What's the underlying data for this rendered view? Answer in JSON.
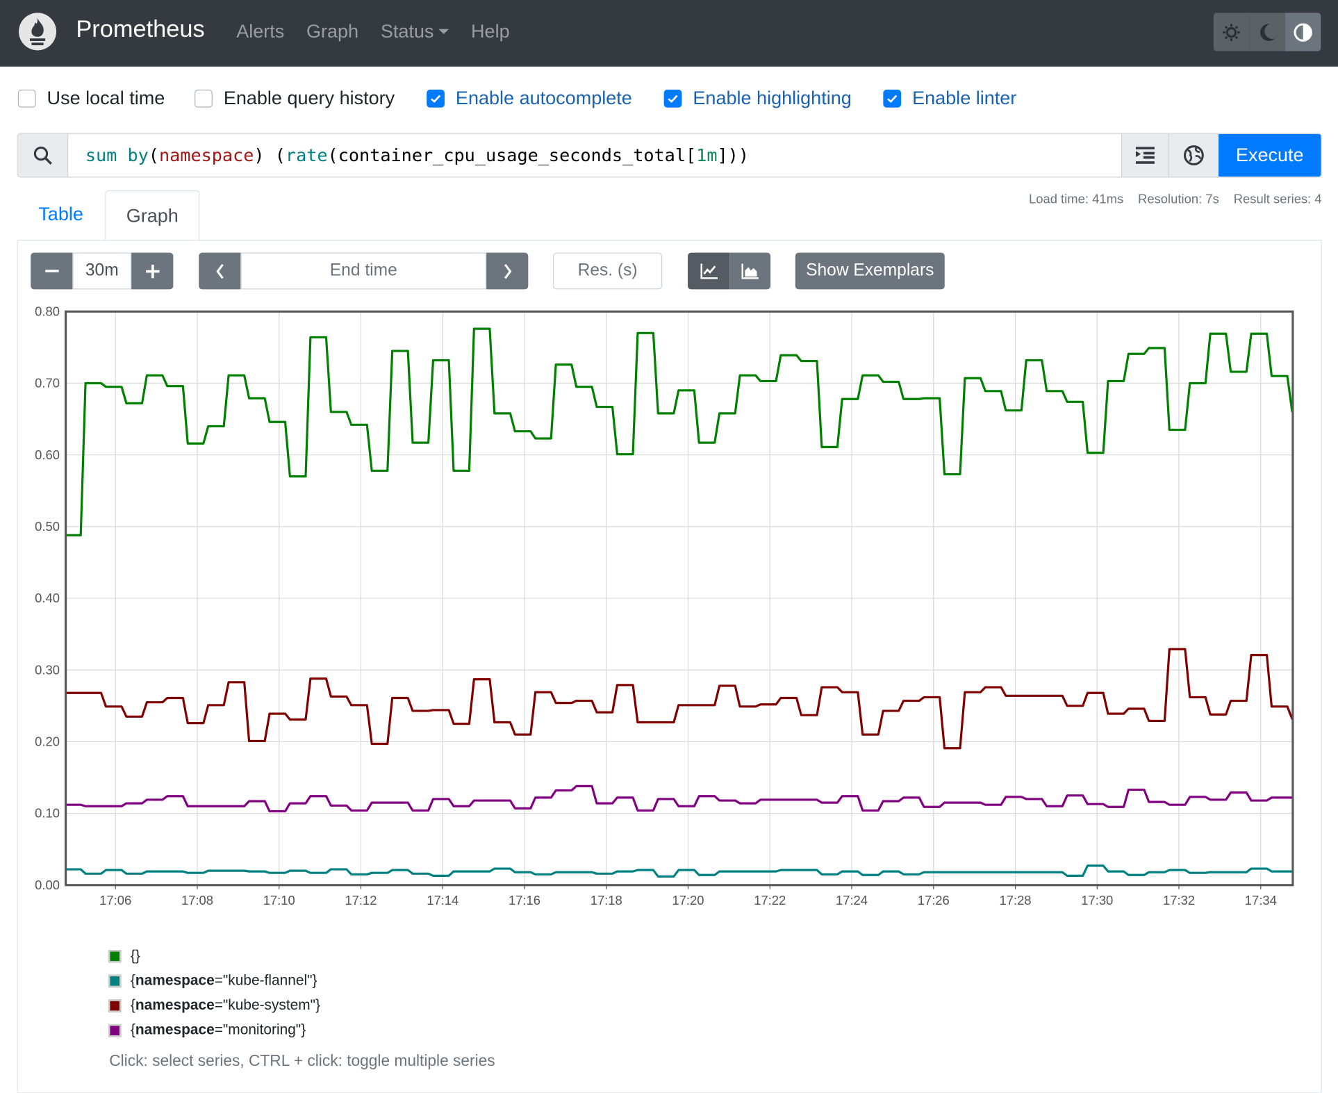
{
  "navbar": {
    "brand": "Prometheus",
    "links": [
      "Alerts",
      "Graph",
      "Status",
      "Help"
    ],
    "theme_buttons": [
      "sun-icon",
      "moon-icon",
      "contrast-icon"
    ]
  },
  "options": [
    {
      "label": "Use local time",
      "checked": false
    },
    {
      "label": "Enable query history",
      "checked": false
    },
    {
      "label": "Enable autocomplete",
      "checked": true
    },
    {
      "label": "Enable highlighting",
      "checked": true
    },
    {
      "label": "Enable linter",
      "checked": true
    }
  ],
  "query": {
    "tokens": [
      {
        "text": "sum",
        "color": "#008080"
      },
      {
        "text": " ",
        "color": "#000000"
      },
      {
        "text": "by",
        "color": "#008080"
      },
      {
        "text": "(",
        "color": "#000000"
      },
      {
        "text": "namespace",
        "color": "#a31515"
      },
      {
        "text": ") (",
        "color": "#000000"
      },
      {
        "text": "rate",
        "color": "#008080"
      },
      {
        "text": "(container_cpu_usage_seconds_total[",
        "color": "#000000"
      },
      {
        "text": "1m",
        "color": "#09885a"
      },
      {
        "text": "]))",
        "color": "#000000"
      }
    ],
    "execute_label": "Execute"
  },
  "tabs": {
    "table": "Table",
    "graph": "Graph",
    "active": "Graph"
  },
  "stats": {
    "load_time": "Load time: 41ms",
    "resolution": "Resolution: 7s",
    "result_series": "Result series: 4"
  },
  "controls": {
    "range": "30m",
    "end_time_placeholder": "End time",
    "resolution_placeholder": "Res. (s)",
    "chart_mode": "line",
    "show_exemplars": "Show Exemplars"
  },
  "legend": {
    "items": [
      {
        "prefix": "{",
        "key": "",
        "eq": "",
        "value": "}",
        "color": "#008000"
      },
      {
        "prefix": "{",
        "key": "namespace",
        "eq": "=",
        "value": "\"kube-flannel\"}",
        "color": "#008080"
      },
      {
        "prefix": "{",
        "key": "namespace",
        "eq": "=",
        "value": "\"kube-system\"}",
        "color": "#800000"
      },
      {
        "prefix": "{",
        "key": "namespace",
        "eq": "=",
        "value": "\"monitoring\"}",
        "color": "#800080"
      }
    ],
    "hint": "Click: select series, CTRL + click: toggle multiple series"
  },
  "chart_data": {
    "type": "line",
    "xlim": [
      "17:04:47",
      "17:34:47"
    ],
    "ylim": [
      0,
      0.8
    ],
    "grid": true,
    "yticks": [
      "0.00",
      "0.10",
      "0.20",
      "0.30",
      "0.40",
      "0.50",
      "0.60",
      "0.70",
      "0.80"
    ],
    "xticks": [
      "17:06",
      "17:08",
      "17:10",
      "17:12",
      "17:14",
      "17:16",
      "17:18",
      "17:20",
      "17:22",
      "17:24",
      "17:26",
      "17:28",
      "17:30",
      "17:32",
      "17:34"
    ],
    "x": [
      "17:04:39",
      "17:05:09",
      "17:05:39",
      "17:06:09",
      "17:06:39",
      "17:07:09",
      "17:07:39",
      "17:08:09",
      "17:08:39",
      "17:09:09",
      "17:09:39",
      "17:10:09",
      "17:10:39",
      "17:11:09",
      "17:11:39",
      "17:12:09",
      "17:12:39",
      "17:13:09",
      "17:13:39",
      "17:14:09",
      "17:14:39",
      "17:15:09",
      "17:15:39",
      "17:16:09",
      "17:16:39",
      "17:17:09",
      "17:17:39",
      "17:18:09",
      "17:18:39",
      "17:19:09",
      "17:19:39",
      "17:20:09",
      "17:20:39",
      "17:21:09",
      "17:21:39",
      "17:22:09",
      "17:22:39",
      "17:23:09",
      "17:23:39",
      "17:24:09",
      "17:24:39",
      "17:25:09",
      "17:25:39",
      "17:26:09",
      "17:26:39",
      "17:27:09",
      "17:27:39",
      "17:28:09",
      "17:28:39",
      "17:29:09",
      "17:29:39",
      "17:30:09",
      "17:30:39",
      "17:31:09",
      "17:31:39",
      "17:32:09",
      "17:32:39",
      "17:33:09",
      "17:33:39",
      "17:34:09",
      "17:34:39"
    ],
    "series": [
      {
        "name": "{}",
        "color": "#008000",
        "values": [
          0.488,
          0.7,
          0.695,
          0.672,
          0.711,
          0.696,
          0.616,
          0.64,
          0.711,
          0.679,
          0.646,
          0.57,
          0.764,
          0.66,
          0.642,
          0.578,
          0.745,
          0.617,
          0.732,
          0.578,
          0.776,
          0.658,
          0.633,
          0.623,
          0.726,
          0.695,
          0.667,
          0.601,
          0.77,
          0.658,
          0.69,
          0.617,
          0.658,
          0.711,
          0.703,
          0.739,
          0.731,
          0.611,
          0.678,
          0.711,
          0.702,
          0.678,
          0.679,
          0.573,
          0.707,
          0.689,
          0.662,
          0.732,
          0.689,
          0.674,
          0.603,
          0.703,
          0.741,
          0.749,
          0.635,
          0.7,
          0.769,
          0.716,
          0.769,
          0.71,
          0.661
        ]
      },
      {
        "name": "{namespace=\"kube-flannel\"}",
        "color": "#008080",
        "values": [
          0.022,
          0.016,
          0.021,
          0.016,
          0.019,
          0.019,
          0.017,
          0.02,
          0.02,
          0.019,
          0.017,
          0.02,
          0.017,
          0.022,
          0.015,
          0.017,
          0.021,
          0.016,
          0.013,
          0.019,
          0.019,
          0.023,
          0.018,
          0.015,
          0.018,
          0.018,
          0.016,
          0.019,
          0.021,
          0.012,
          0.021,
          0.014,
          0.019,
          0.019,
          0.019,
          0.021,
          0.021,
          0.015,
          0.019,
          0.014,
          0.019,
          0.015,
          0.018,
          0.018,
          0.018,
          0.018,
          0.018,
          0.018,
          0.018,
          0.013,
          0.027,
          0.019,
          0.014,
          0.018,
          0.021,
          0.017,
          0.018,
          0.018,
          0.023,
          0.019,
          0.019
        ]
      },
      {
        "name": "{namespace=\"kube-system\"}",
        "color": "#800000",
        "values": [
          0.268,
          0.268,
          0.249,
          0.235,
          0.255,
          0.261,
          0.226,
          0.251,
          0.283,
          0.201,
          0.239,
          0.231,
          0.288,
          0.263,
          0.251,
          0.197,
          0.261,
          0.243,
          0.244,
          0.225,
          0.287,
          0.227,
          0.21,
          0.269,
          0.254,
          0.257,
          0.241,
          0.279,
          0.227,
          0.227,
          0.251,
          0.251,
          0.278,
          0.249,
          0.252,
          0.261,
          0.237,
          0.276,
          0.269,
          0.21,
          0.243,
          0.257,
          0.262,
          0.191,
          0.269,
          0.276,
          0.264,
          0.264,
          0.264,
          0.25,
          0.268,
          0.239,
          0.246,
          0.229,
          0.329,
          0.262,
          0.238,
          0.257,
          0.321,
          0.249,
          0.232
        ]
      },
      {
        "name": "{namespace=\"monitoring\"}",
        "color": "#800080",
        "values": [
          0.112,
          0.11,
          0.11,
          0.114,
          0.119,
          0.124,
          0.11,
          0.11,
          0.11,
          0.117,
          0.103,
          0.114,
          0.124,
          0.111,
          0.104,
          0.115,
          0.115,
          0.104,
          0.12,
          0.11,
          0.118,
          0.118,
          0.107,
          0.122,
          0.132,
          0.138,
          0.114,
          0.122,
          0.104,
          0.12,
          0.11,
          0.124,
          0.118,
          0.114,
          0.119,
          0.119,
          0.119,
          0.115,
          0.124,
          0.104,
          0.117,
          0.122,
          0.109,
          0.115,
          0.115,
          0.112,
          0.123,
          0.12,
          0.11,
          0.125,
          0.113,
          0.109,
          0.133,
          0.116,
          0.112,
          0.123,
          0.119,
          0.129,
          0.118,
          0.122,
          0.122
        ]
      }
    ]
  }
}
